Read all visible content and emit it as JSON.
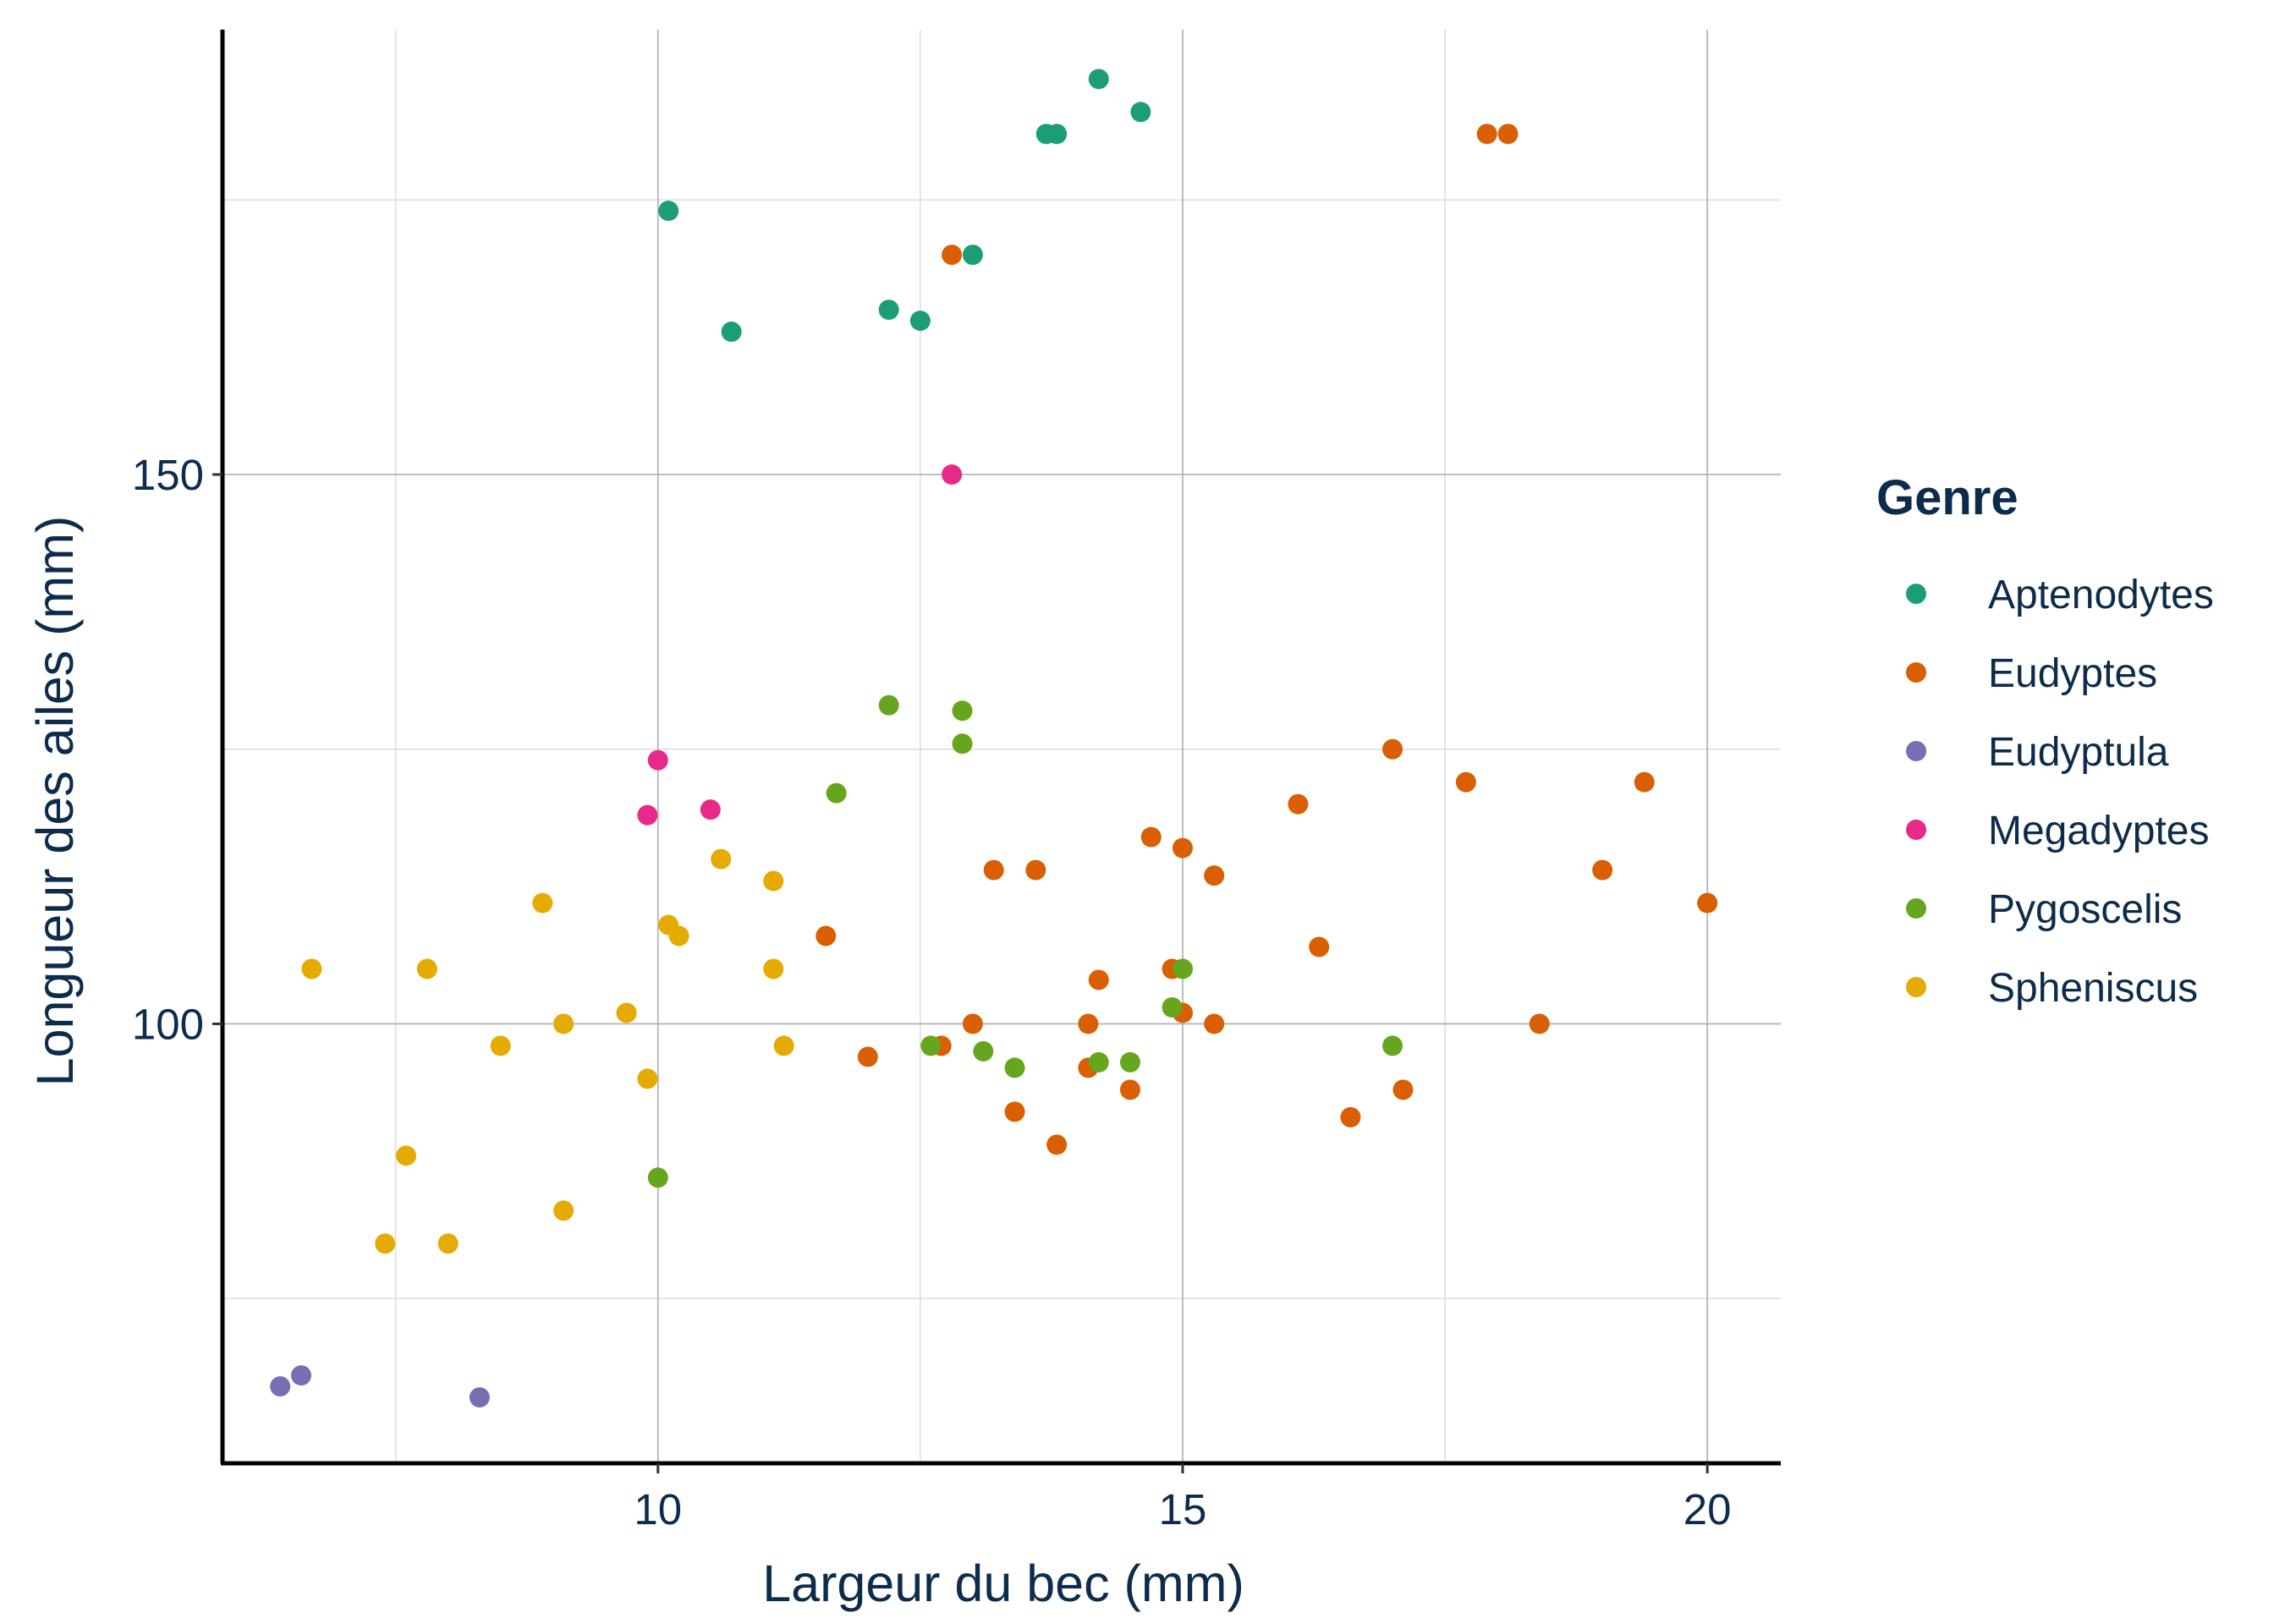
{
  "chart_data": {
    "type": "scatter",
    "title": "",
    "xlabel": "Largeur du bec (mm)",
    "ylabel": "Longueur des ailes (mm)",
    "xlim": [
      5.85,
      20.7
    ],
    "ylim": [
      60,
      190.5
    ],
    "x_ticks": [
      10,
      15,
      20
    ],
    "x_minor_ticks": [
      7.5,
      12.5,
      17.5
    ],
    "y_ticks": [
      100,
      150
    ],
    "y_minor_ticks": [
      75,
      125,
      175
    ],
    "x_tick_labels": [
      "10",
      "15",
      "20"
    ],
    "y_tick_labels": [
      "100",
      "150"
    ],
    "grid": true,
    "legend": {
      "title": "Genre",
      "position": "right"
    },
    "series": [
      {
        "name": "Aptenodytes",
        "color": "#1b9e77",
        "points": [
          [
            14.2,
            186
          ],
          [
            14.6,
            183
          ],
          [
            13.7,
            181
          ],
          [
            13.8,
            181
          ],
          [
            10.1,
            174
          ],
          [
            13.0,
            170
          ],
          [
            12.2,
            165
          ],
          [
            12.5,
            164
          ],
          [
            10.7,
            163
          ]
        ]
      },
      {
        "name": "Eudyptes",
        "color": "#d95f02",
        "points": [
          [
            17.9,
            181
          ],
          [
            18.1,
            181
          ],
          [
            12.8,
            170
          ],
          [
            17.0,
            125
          ],
          [
            17.7,
            122
          ],
          [
            19.4,
            122
          ],
          [
            16.1,
            120
          ],
          [
            14.7,
            117
          ],
          [
            15.0,
            116
          ],
          [
            13.2,
            114
          ],
          [
            13.6,
            114
          ],
          [
            15.3,
            113.5
          ],
          [
            19.0,
            114
          ],
          [
            20.0,
            111
          ],
          [
            11.6,
            108
          ],
          [
            16.3,
            107
          ],
          [
            14.9,
            105
          ],
          [
            14.2,
            104
          ],
          [
            13.0,
            100
          ],
          [
            14.1,
            100
          ],
          [
            15.0,
            101
          ],
          [
            15.3,
            100
          ],
          [
            18.4,
            100
          ],
          [
            12.0,
            97
          ],
          [
            12.7,
            98
          ],
          [
            14.1,
            96
          ],
          [
            14.5,
            94
          ],
          [
            17.1,
            94
          ],
          [
            13.4,
            92
          ],
          [
            16.6,
            91.5
          ],
          [
            13.8,
            89
          ]
        ]
      },
      {
        "name": "Eudyptula",
        "color": "#7570b3",
        "points": [
          [
            6.6,
            68
          ],
          [
            6.4,
            67
          ],
          [
            8.3,
            66
          ]
        ]
      },
      {
        "name": "Megadyptes",
        "color": "#e7298a",
        "points": [
          [
            12.8,
            150
          ],
          [
            10.0,
            124
          ],
          [
            9.9,
            119
          ],
          [
            10.5,
            119.5
          ]
        ]
      },
      {
        "name": "Pygoscelis",
        "color": "#66a61e",
        "points": [
          [
            12.2,
            129
          ],
          [
            12.9,
            128.5
          ],
          [
            12.9,
            125.5
          ],
          [
            11.7,
            121
          ],
          [
            15.0,
            105
          ],
          [
            14.9,
            101.5
          ],
          [
            12.6,
            98
          ],
          [
            13.1,
            97.5
          ],
          [
            13.4,
            96
          ],
          [
            14.2,
            96.5
          ],
          [
            14.5,
            96.5
          ],
          [
            17.0,
            98
          ],
          [
            10.0,
            86
          ]
        ]
      },
      {
        "name": "Spheniscus",
        "color": "#e6ab02",
        "points": [
          [
            10.6,
            115
          ],
          [
            11.1,
            113
          ],
          [
            8.9,
            111
          ],
          [
            10.1,
            109
          ],
          [
            10.2,
            108
          ],
          [
            6.7,
            105
          ],
          [
            7.8,
            105
          ],
          [
            11.1,
            105
          ],
          [
            9.7,
            101
          ],
          [
            9.1,
            100
          ],
          [
            8.5,
            98
          ],
          [
            11.2,
            98
          ],
          [
            9.9,
            95
          ],
          [
            7.6,
            88
          ],
          [
            9.1,
            83
          ],
          [
            7.4,
            80
          ],
          [
            8.0,
            80
          ]
        ]
      }
    ]
  }
}
